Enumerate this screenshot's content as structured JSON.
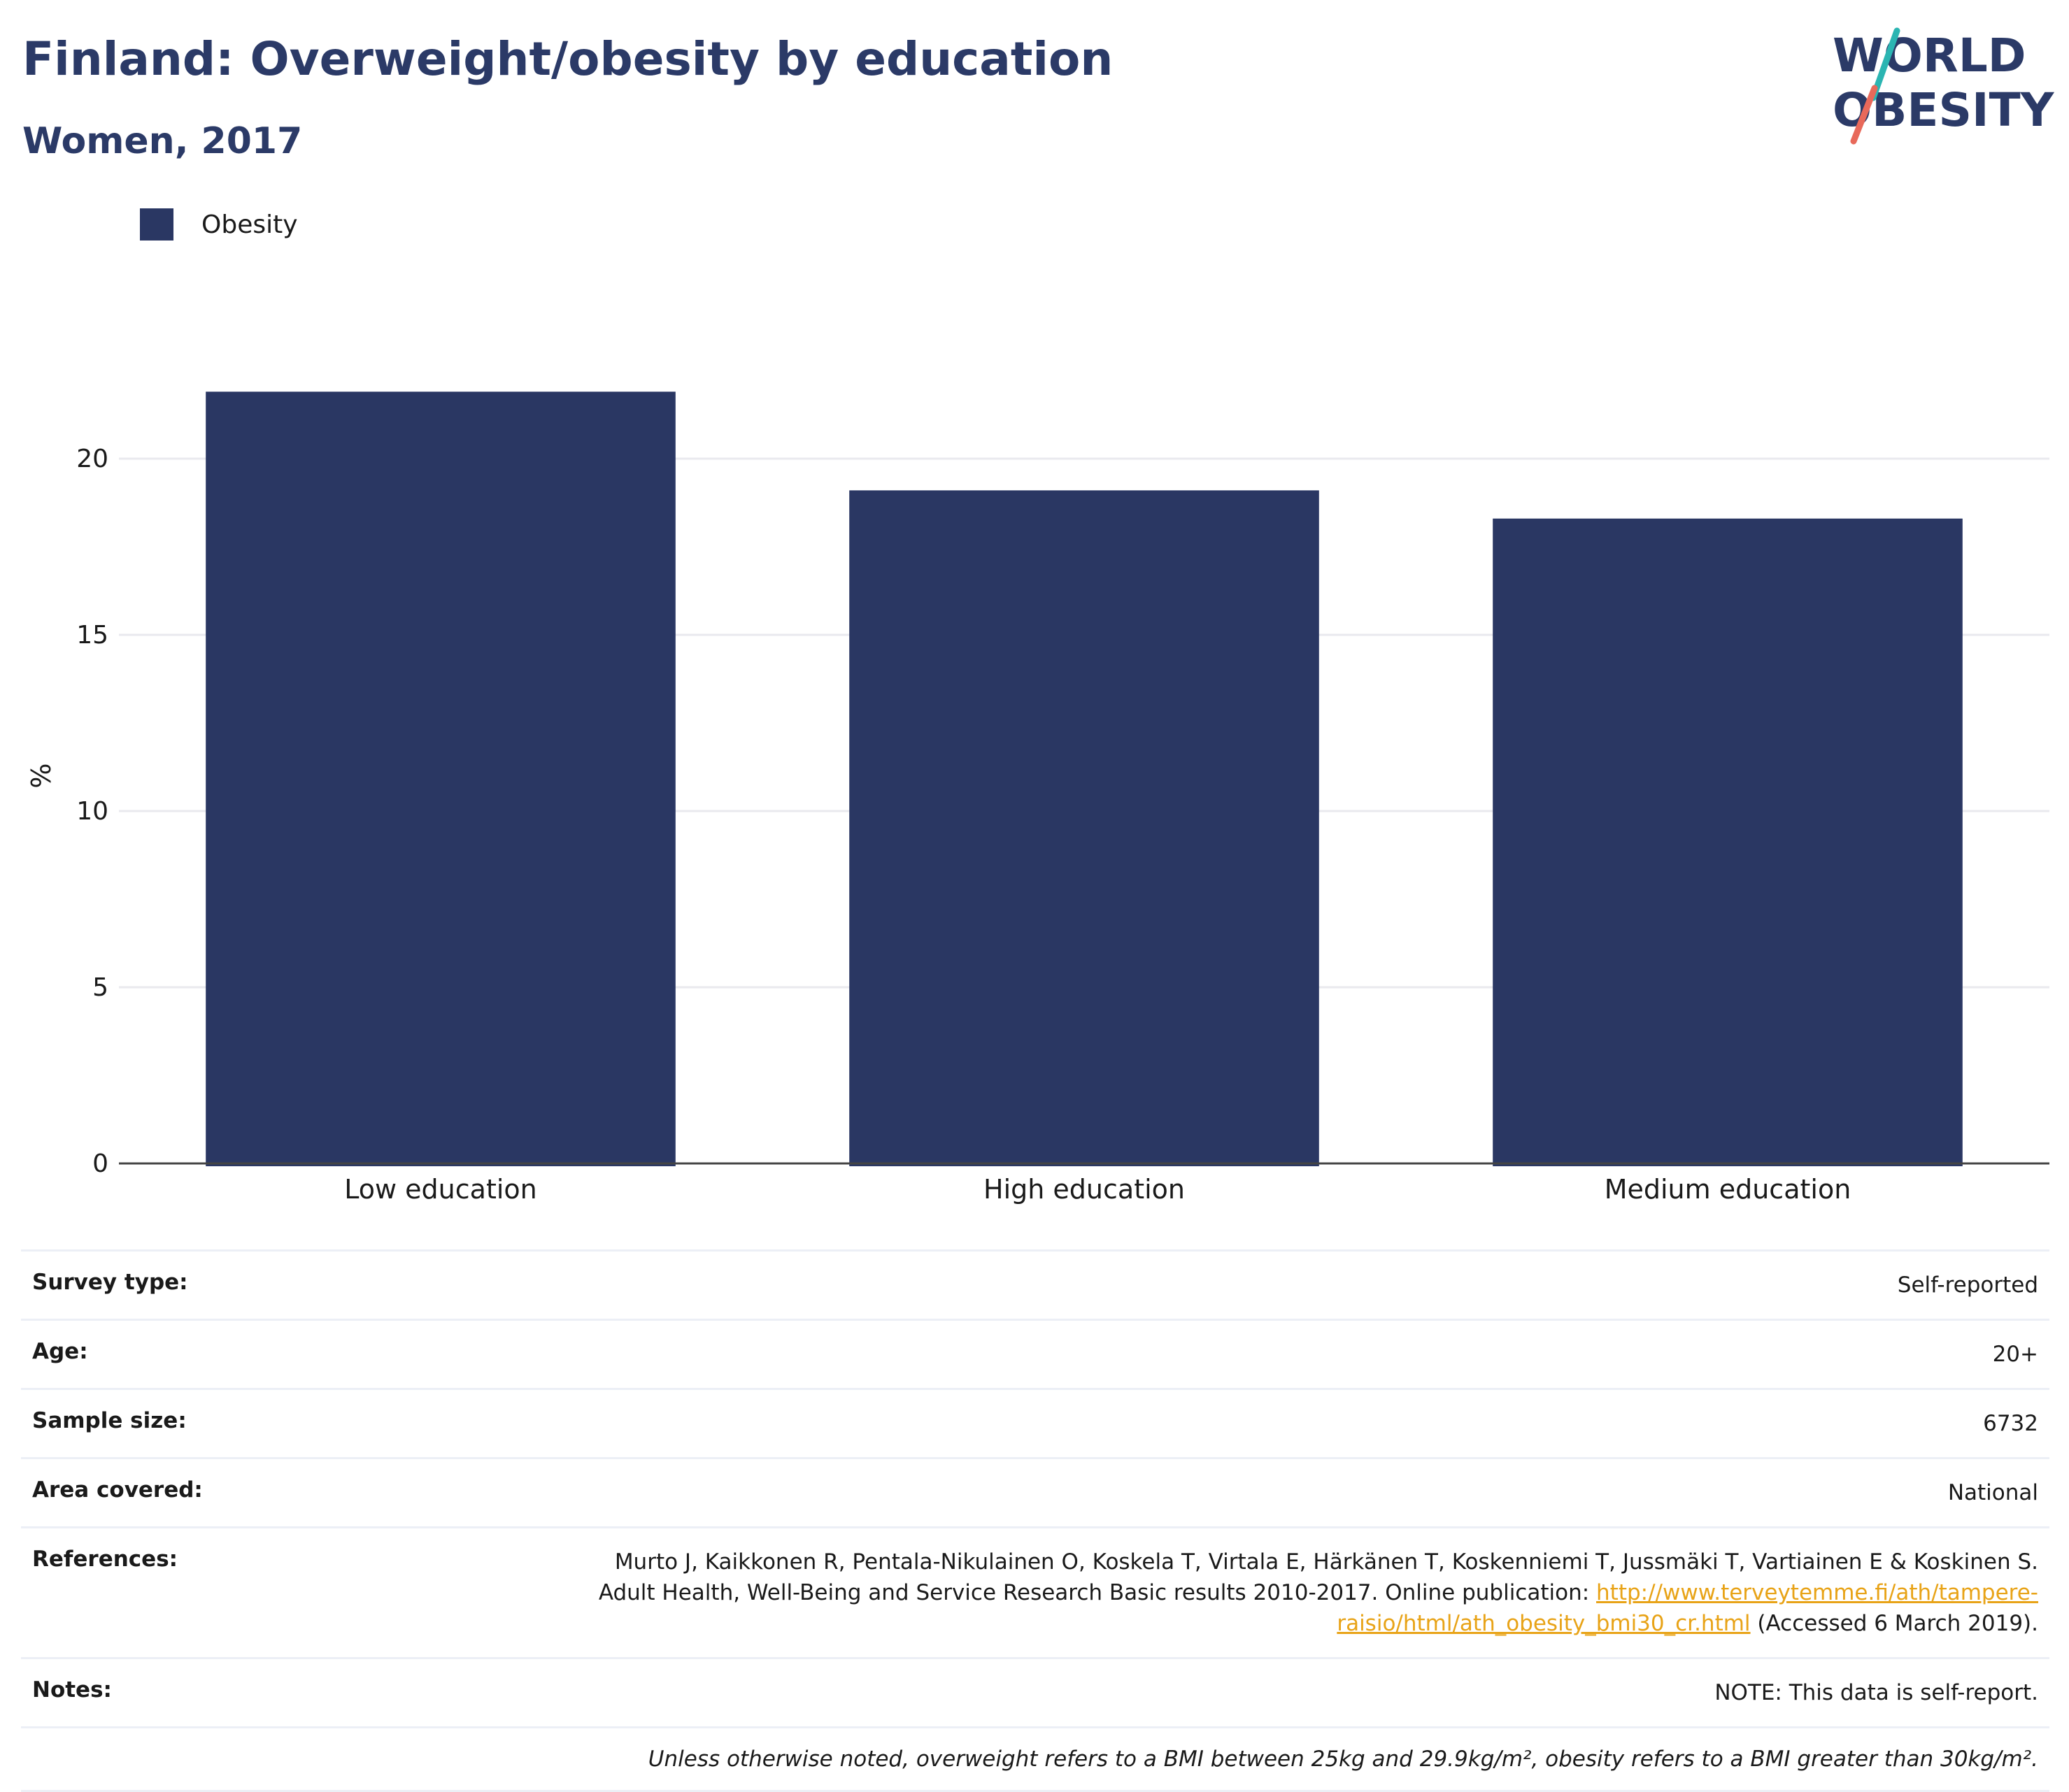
{
  "header": {
    "title": "Finland: Overweight/obesity by education",
    "subtitle": "Women, 2017"
  },
  "logo": {
    "line1": "WORLD",
    "line2": "OBESITY",
    "accent1": "#2bb5b2",
    "accent2": "#e8695a"
  },
  "colors": {
    "navy": "#2b3a67",
    "bar": "#2a3763",
    "grid": "#e9e9ee",
    "link": "#e8a317"
  },
  "legend": {
    "label": "Obesity"
  },
  "chart_data": {
    "type": "bar",
    "categories": [
      "Low education",
      "High education",
      "Medium education"
    ],
    "series": [
      {
        "name": "Obesity",
        "values": [
          21.9,
          19.1,
          18.3
        ]
      }
    ],
    "ylabel": "%",
    "ylim": [
      0,
      22
    ],
    "yticks": [
      0,
      5,
      10,
      15,
      20
    ],
    "grid": true,
    "legend_position": "top-left"
  },
  "info": {
    "survey_type_label": "Survey type:",
    "survey_type_value": "Self-reported",
    "age_label": "Age:",
    "age_value": "20+",
    "sample_label": "Sample size:",
    "sample_value": "6732",
    "area_label": "Area covered:",
    "area_value": "National",
    "references_label": "References:",
    "references_line1": "Murto J, Kaikkonen R, Pentala-Nikulainen O, Koskela T, Virtala E, Härkänen T, Koskenniemi T, Jussmäki T, Vartiainen E & Koskinen S.",
    "references_line2": "Adult Health, Well-Being and Service Research Basic results 2010-2017. Online publication: ",
    "references_link_a": "http://www.terveytemme.fi/ath/tampere-",
    "references_link_b": "raisio/html/ath_obesity_bmi30_cr.html",
    "references_tail": " (Accessed 6 March 2019).",
    "notes_label": "Notes:",
    "notes_value": "NOTE: This data is self-report.",
    "footnote": "Unless otherwise noted, overweight refers to a BMI between 25kg and 29.9kg/m², obesity refers to a BMI greater than 30kg/m²."
  }
}
